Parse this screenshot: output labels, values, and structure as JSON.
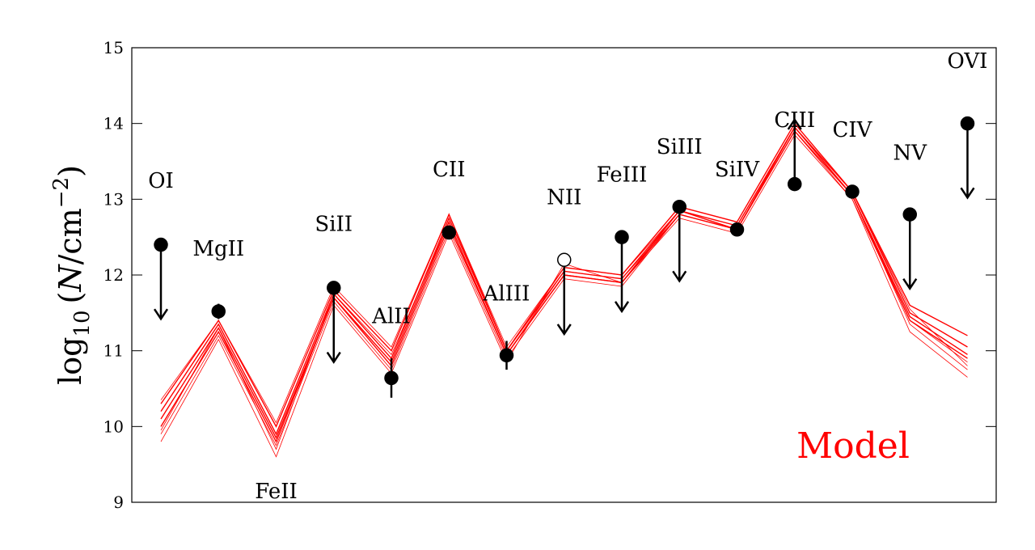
{
  "chart_data": {
    "type": "line",
    "title": "",
    "ylabel": "log10 (N/cm^-2)",
    "ylabel_parts": {
      "main": "log",
      "sub": "10",
      "open": "(",
      "var": "N",
      "unit": "/cm",
      "sup": "−2",
      "close": ")"
    },
    "ylim": [
      9,
      15
    ],
    "yticks": [
      "9",
      "10",
      "11",
      "12",
      "13",
      "14",
      "15"
    ],
    "annotation": {
      "text": "Model",
      "color": "#ff0000"
    },
    "ions": [
      "OI",
      "MgII",
      "FeII",
      "SiII",
      "AlII",
      "CII",
      "AlIII",
      "NII",
      "FeIII",
      "SiIII",
      "SiIV",
      "CIII",
      "CIV",
      "NV",
      "OVI"
    ],
    "observations": [
      {
        "ion": "OI",
        "value": 12.4,
        "kind": "upper_limit"
      },
      {
        "ion": "MgII",
        "value": 11.52,
        "kind": "detection",
        "err": 0.1
      },
      {
        "ion": "SiII",
        "value": 11.83,
        "kind": "upper_limit"
      },
      {
        "ion": "AlII",
        "value": 10.64,
        "kind": "detection",
        "err": 0.26
      },
      {
        "ion": "CII",
        "value": 12.56,
        "kind": "detection",
        "err": 0.04
      },
      {
        "ion": "AlIII",
        "value": 10.94,
        "kind": "detection",
        "err": 0.19
      },
      {
        "ion": "NII",
        "value": 12.2,
        "kind": "upper_limit_open"
      },
      {
        "ion": "FeIII",
        "value": 12.5,
        "kind": "upper_limit"
      },
      {
        "ion": "SiIII",
        "value": 12.9,
        "kind": "upper_limit"
      },
      {
        "ion": "SiIV",
        "value": 12.6,
        "kind": "detection",
        "err": 0.04
      },
      {
        "ion": "CIII",
        "value": 13.2,
        "kind": "lower_limit"
      },
      {
        "ion": "CIV",
        "value": 13.1,
        "kind": "detection",
        "err": 0.04
      },
      {
        "ion": "NV",
        "value": 12.8,
        "kind": "upper_limit"
      },
      {
        "ion": "OVI",
        "value": 14.0,
        "kind": "upper_limit"
      }
    ],
    "model_color": "#ff0000",
    "model_series": [
      {
        "values": [
          10.3,
          11.4,
          10.0,
          11.8,
          11.0,
          12.8,
          11.0,
          12.1,
          12.0,
          12.9,
          12.7,
          14.0,
          13.1,
          11.6,
          11.2
        ]
      },
      {
        "values": [
          10.2,
          11.35,
          9.9,
          11.75,
          10.9,
          12.75,
          11.0,
          12.05,
          11.95,
          12.85,
          12.65,
          13.95,
          13.1,
          11.5,
          11.05
        ]
      },
      {
        "values": [
          10.1,
          11.3,
          9.85,
          11.7,
          10.85,
          12.7,
          10.95,
          12.0,
          11.9,
          12.85,
          12.6,
          13.95,
          13.05,
          11.45,
          10.95
        ]
      },
      {
        "values": [
          10.0,
          11.25,
          9.8,
          11.7,
          10.8,
          12.65,
          10.95,
          12.0,
          11.9,
          12.8,
          12.6,
          13.9,
          13.05,
          11.4,
          10.9
        ]
      },
      {
        "values": [
          9.9,
          11.2,
          9.75,
          11.65,
          10.75,
          12.6,
          10.9,
          11.95,
          11.85,
          12.8,
          12.6,
          13.9,
          13.0,
          11.4,
          10.85
        ]
      },
      {
        "values": [
          9.8,
          11.15,
          9.6,
          11.6,
          10.7,
          12.55,
          10.85,
          12.15,
          11.9,
          12.75,
          12.55,
          13.85,
          13.0,
          11.25,
          10.65
        ]
      },
      {
        "values": [
          10.35,
          11.4,
          10.05,
          11.85,
          11.05,
          12.8,
          11.05,
          12.1,
          12.0,
          12.85,
          12.65,
          13.95,
          13.1,
          11.55,
          10.8
        ]
      },
      {
        "values": [
          9.95,
          11.3,
          9.7,
          11.75,
          10.95,
          12.7,
          10.95,
          12.05,
          11.95,
          12.8,
          12.6,
          13.9,
          13.05,
          11.35,
          10.75
        ]
      }
    ]
  }
}
